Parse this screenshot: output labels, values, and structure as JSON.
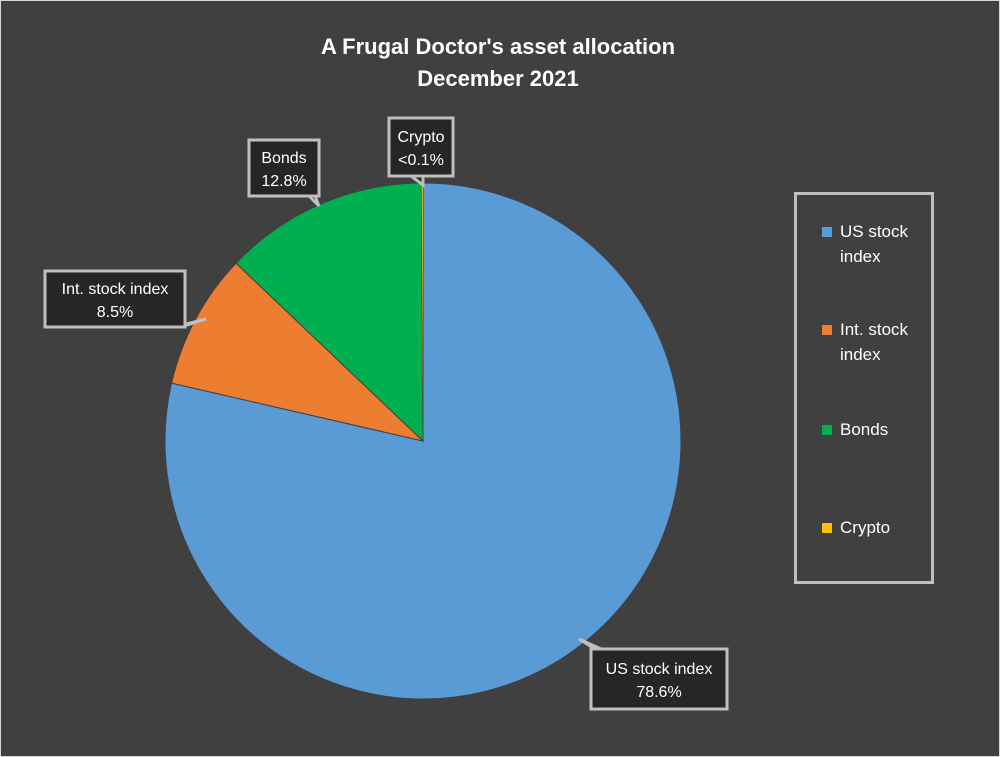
{
  "chart_data": {
    "type": "pie",
    "title": "A Frugal Doctor's asset allocation",
    "subtitle": "December 2021",
    "slices": [
      {
        "label": "US stock index",
        "value": 78.6,
        "value_label": "78.6%",
        "color": "#5b9bd5"
      },
      {
        "label": "Int. stock index",
        "value": 8.5,
        "value_label": "8.5%",
        "color": "#ed7d31"
      },
      {
        "label": "Bonds",
        "value": 12.8,
        "value_label": "12.8%",
        "color": "#00b050"
      },
      {
        "label": "Crypto",
        "value": 0.1,
        "value_label": "<0.1%",
        "color": "#ffc000"
      }
    ],
    "legend_position": "right",
    "start_angle_degrees": 0,
    "direction": "clockwise"
  },
  "colors": {
    "background": "#404040",
    "text": "#ffffff",
    "label_box_fill": "#262626",
    "label_box_border": "#bfbfbf",
    "slice_border": "#404040"
  }
}
